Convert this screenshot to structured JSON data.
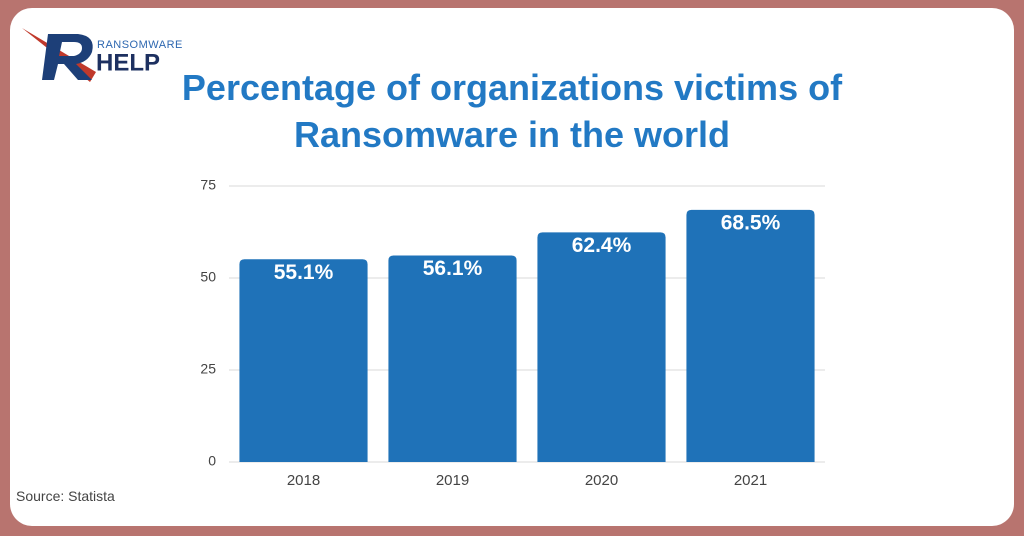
{
  "logo": {
    "small": "RANSOMWARE",
    "large": "HELP"
  },
  "chart_data": {
    "type": "bar",
    "title": "Percentage of organizations victims of Ransomware in the world",
    "categories": [
      "2018",
      "2019",
      "2020",
      "2021"
    ],
    "values": [
      55.1,
      56.1,
      62.4,
      68.5
    ],
    "value_labels": [
      "55.1%",
      "56.1%",
      "62.4%",
      "68.5%"
    ],
    "color": "#1f72b8",
    "ylim": [
      0,
      75
    ],
    "yticks": [
      0,
      25,
      50,
      75
    ],
    "grid": true,
    "source": "Source: Statista"
  }
}
